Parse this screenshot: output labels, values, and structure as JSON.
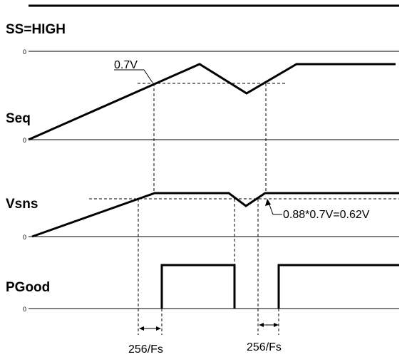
{
  "title": "SS=HIGH",
  "signals": {
    "seq": {
      "label": "Seq",
      "zero": "0",
      "upper_tick": "0"
    },
    "vsns": {
      "label": "Vsns",
      "zero": "0"
    },
    "pgood": {
      "label": "PGood",
      "zero": "0"
    }
  },
  "annotations": {
    "seq_threshold": "0.7V",
    "vsns_threshold": "0.88*0.7V=0.62V",
    "delay_1": "256/Fs",
    "delay_2": "256/Fs"
  }
}
